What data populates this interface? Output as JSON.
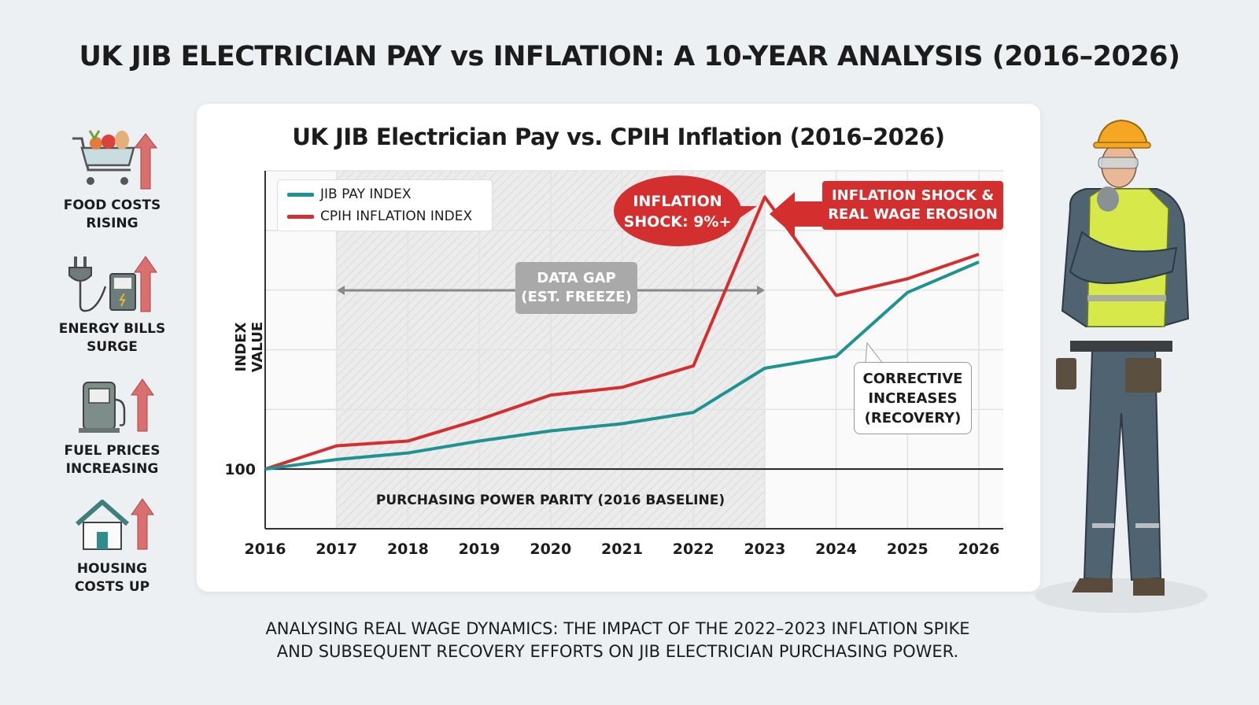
{
  "title": "UK JIB ELECTRICIAN PAY vs INFLATION: A 10-YEAR ANALYSIS (2016–2026)",
  "sidebar": {
    "items": [
      {
        "label_line1": "FOOD COSTS",
        "label_line2": "RISING",
        "icon": "shopping-cart-icon"
      },
      {
        "label_line1": "ENERGY BILLS",
        "label_line2": "SURGE",
        "icon": "plug-meter-icon"
      },
      {
        "label_line1": "FUEL PRICES",
        "label_line2": "INCREASING",
        "icon": "fuel-pump-icon"
      },
      {
        "label_line1": "HOUSING",
        "label_line2": "COSTS UP",
        "icon": "house-icon"
      }
    ],
    "arrow_color": "#d9706f"
  },
  "annotations": {
    "bubble_line1": "INFLATION",
    "bubble_line2": "SHOCK: 9%+",
    "banner_line1": "INFLATION SHOCK &",
    "banner_line2": "REAL WAGE EROSION",
    "gap_line1": "DATA GAP",
    "gap_line2": "(EST. FREEZE)",
    "recovery_line1": "CORRECTIVE",
    "recovery_line2": "INCREASES",
    "recovery_line3": "(RECOVERY)",
    "baseline_label": "PURCHASING POWER PARITY (2016 BASELINE)"
  },
  "chart_data": {
    "type": "line",
    "title": "UK JIB Electrician Pay vs. CPIH Inflation (2016–2026)",
    "xlabel": "",
    "ylabel": "INDEX VALUE",
    "categories": [
      "2016",
      "2017",
      "2018",
      "2019",
      "2020",
      "2021",
      "2022",
      "2023",
      "2024",
      "2025",
      "2026"
    ],
    "y_tick_labels": [
      "100"
    ],
    "ylim": [
      90,
      150
    ],
    "grid": true,
    "legend_position": "top-left",
    "shaded_region": [
      "2017",
      "2023"
    ],
    "series": [
      {
        "name": "JIB PAY INDEX",
        "color": "#1f9391",
        "values": [
          100,
          101.6,
          102.7,
          104.7,
          106.4,
          107.6,
          109.5,
          116.9,
          118.9,
          129.6,
          134.7
        ]
      },
      {
        "name": "CPIH INFLATION INDEX",
        "color": "#d32f2f",
        "values": [
          100,
          103.9,
          104.7,
          108.3,
          112.4,
          113.7,
          117.3,
          145.6,
          129.1,
          131.9,
          136.0
        ]
      }
    ]
  },
  "footer": {
    "line1": "ANALYSING REAL WAGE DYNAMICS: THE IMPACT OF THE 2022–2023 INFLATION SPIKE",
    "line2": "AND SUBSEQUENT RECOVERY EFFORTS ON JIB ELECTRICIAN PURCHASING POWER."
  }
}
